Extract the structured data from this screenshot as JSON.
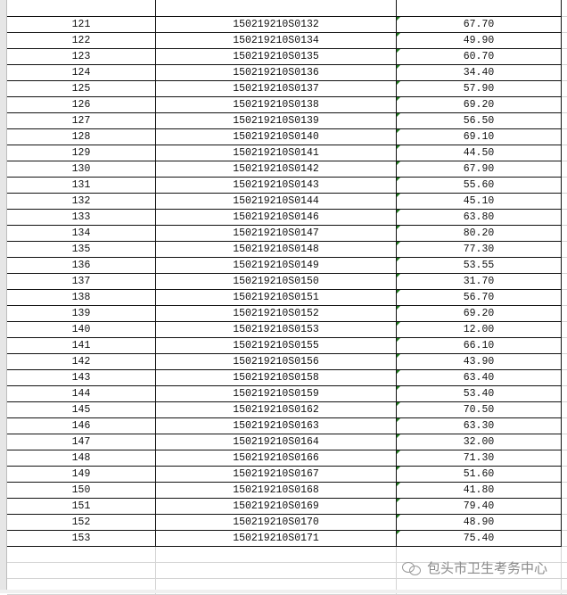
{
  "columns": [
    "",
    "",
    ""
  ],
  "rows": [
    [
      "121",
      "150219210S0132",
      "67.70"
    ],
    [
      "122",
      "150219210S0134",
      "49.90"
    ],
    [
      "123",
      "150219210S0135",
      "60.70"
    ],
    [
      "124",
      "150219210S0136",
      "34.40"
    ],
    [
      "125",
      "150219210S0137",
      "57.90"
    ],
    [
      "126",
      "150219210S0138",
      "69.20"
    ],
    [
      "127",
      "150219210S0139",
      "56.50"
    ],
    [
      "128",
      "150219210S0140",
      "69.10"
    ],
    [
      "129",
      "150219210S0141",
      "44.50"
    ],
    [
      "130",
      "150219210S0142",
      "67.90"
    ],
    [
      "131",
      "150219210S0143",
      "55.60"
    ],
    [
      "132",
      "150219210S0144",
      "45.10"
    ],
    [
      "133",
      "150219210S0146",
      "63.80"
    ],
    [
      "134",
      "150219210S0147",
      "80.20"
    ],
    [
      "135",
      "150219210S0148",
      "77.30"
    ],
    [
      "136",
      "150219210S0149",
      "53.55"
    ],
    [
      "137",
      "150219210S0150",
      "31.70"
    ],
    [
      "138",
      "150219210S0151",
      "56.70"
    ],
    [
      "139",
      "150219210S0152",
      "69.20"
    ],
    [
      "140",
      "150219210S0153",
      "12.00"
    ],
    [
      "141",
      "150219210S0155",
      "66.10"
    ],
    [
      "142",
      "150219210S0156",
      "43.90"
    ],
    [
      "143",
      "150219210S0158",
      "63.40"
    ],
    [
      "144",
      "150219210S0159",
      "53.40"
    ],
    [
      "145",
      "150219210S0162",
      "70.50"
    ],
    [
      "146",
      "150219210S0163",
      "63.30"
    ],
    [
      "147",
      "150219210S0164",
      "32.00"
    ],
    [
      "148",
      "150219210S0166",
      "71.30"
    ],
    [
      "149",
      "150219210S0167",
      "51.60"
    ],
    [
      "150",
      "150219210S0168",
      "41.80"
    ],
    [
      "151",
      "150219210S0169",
      "79.40"
    ],
    [
      "152",
      "150219210S0170",
      "48.90"
    ],
    [
      "153",
      "150219210S0171",
      "75.40"
    ]
  ],
  "watermark": {
    "text": "包头市卫生考务中心",
    "icon": "wechat-icon"
  },
  "colors": {
    "grid": "#111111",
    "error_indicator": "#1e7a1e",
    "row_header": "#e6e6e6"
  }
}
